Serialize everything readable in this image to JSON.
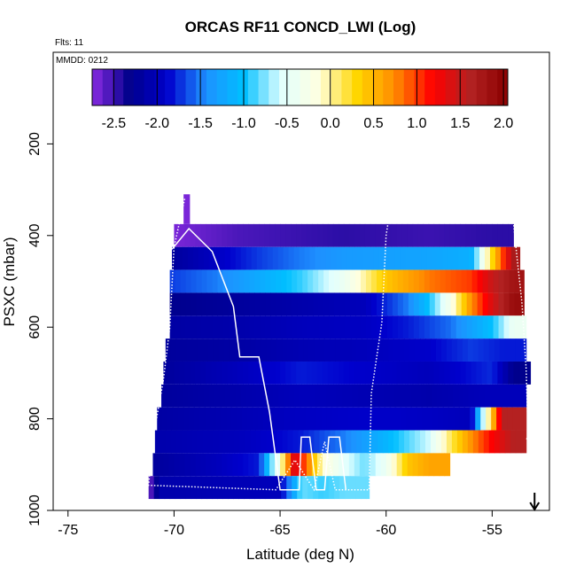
{
  "chart_data": {
    "type": "heatmap",
    "title": "ORCAS RF11 CONCD_LWI (Log)",
    "flights_note": "Flts: 11",
    "date_note": "MMDD: 0212",
    "xlabel": "Latitude (deg N)",
    "ylabel": "PSXC (mbar)",
    "xlim": [
      -75.7,
      -52.3
    ],
    "ylim": [
      1000,
      0
    ],
    "x_ticks": [
      -75,
      -70,
      -65,
      -60,
      -55
    ],
    "x_tick_labels": [
      "-75",
      "-70",
      "-65",
      "-60",
      "-55"
    ],
    "y_ticks": [
      200,
      400,
      600,
      800,
      1000
    ],
    "y_tick_labels": [
      "200",
      "400",
      "600",
      "800",
      "1000"
    ],
    "colorbar": {
      "range": [
        -2.75,
        2.05
      ],
      "ticks": [
        -2.5,
        -2.0,
        -1.5,
        -1.0,
        -0.5,
        0.0,
        0.5,
        1.0,
        1.5,
        2.0
      ],
      "tick_labels": [
        "-2.5",
        "-2.0",
        "-1.5",
        "-1.0",
        "-0.5",
        "0.0",
        "0.5",
        "1.0",
        "1.5",
        "2.0"
      ],
      "colors": [
        "#8a2be2",
        "#00008b",
        "#0000cd",
        "#1e90ff",
        "#00bfff",
        "#e0ffff",
        "#ffffe0",
        "#ffd700",
        "#ff8c00",
        "#ff0000",
        "#b22222",
        "#8b0000"
      ]
    },
    "pressure_bins": [
      {
        "p": 400,
        "lat_min": -70,
        "lat_max": -54,
        "segments": [
          [
            -70,
            -2.7
          ],
          [
            -67,
            -2.55
          ],
          [
            -62,
            -2.45
          ],
          [
            -58,
            -2.5
          ],
          [
            -55,
            -2.45
          ]
        ]
      },
      {
        "p": 450,
        "lat_min": -70.1,
        "lat_max": -53.7,
        "segments": [
          [
            -70.1,
            -2.2
          ],
          [
            -68,
            -1.95
          ],
          [
            -66,
            -1.7
          ],
          [
            -64,
            -1.5
          ],
          [
            -62,
            -1.35
          ],
          [
            -60,
            -1.3
          ],
          [
            -58,
            -1.25
          ],
          [
            -56,
            -1.15
          ],
          [
            -54,
            1.7
          ]
        ]
      },
      {
        "p": 500,
        "lat_min": -70.2,
        "lat_max": -53.5,
        "segments": [
          [
            -70.2,
            -1.7
          ],
          [
            -68,
            -1.5
          ],
          [
            -66,
            -1.2
          ],
          [
            -64,
            -0.9
          ],
          [
            -62,
            -0.4
          ],
          [
            -60,
            0.4
          ],
          [
            -58,
            0.8
          ],
          [
            -56,
            1.0
          ],
          [
            -55,
            1.5
          ],
          [
            -54,
            1.8
          ]
        ]
      },
      {
        "p": 550,
        "lat_min": -70.2,
        "lat_max": -53.5,
        "segments": [
          [
            -70.2,
            -2.3
          ],
          [
            -67,
            -2.2
          ],
          [
            -64,
            -2.1
          ],
          [
            -61,
            -2.0
          ],
          [
            -59,
            -1.5
          ],
          [
            -58,
            -1.0
          ],
          [
            -57,
            -0.3
          ],
          [
            -56,
            0.7
          ],
          [
            -55,
            1.4
          ],
          [
            -54,
            1.9
          ]
        ]
      },
      {
        "p": 600,
        "lat_min": -70.2,
        "lat_max": -53.4,
        "segments": [
          [
            -70.2,
            -2.15
          ],
          [
            -67,
            -2.1
          ],
          [
            -64,
            -2.0
          ],
          [
            -61,
            -1.95
          ],
          [
            -59,
            -1.8
          ],
          [
            -57,
            -1.55
          ],
          [
            -55,
            -1.0
          ],
          [
            -54,
            -0.4
          ]
        ]
      },
      {
        "p": 650,
        "lat_min": -70.4,
        "lat_max": -53.4,
        "segments": [
          [
            -70.4,
            -2.2
          ],
          [
            -67,
            -2.15
          ],
          [
            -64,
            -2.05
          ],
          [
            -61,
            -2.0
          ],
          [
            -58,
            -1.9
          ],
          [
            -56,
            -1.7
          ],
          [
            -54.5,
            -1.8
          ]
        ]
      },
      {
        "p": 700,
        "lat_min": -70.5,
        "lat_max": -53.2,
        "segments": [
          [
            -70.5,
            -2.2
          ],
          [
            -67,
            -2.0
          ],
          [
            -64,
            -1.8
          ],
          [
            -61,
            -1.9
          ],
          [
            -58,
            -2.0
          ],
          [
            -55,
            -1.75
          ],
          [
            -54,
            -2.3
          ]
        ]
      },
      {
        "p": 750,
        "lat_min": -70.6,
        "lat_max": -53.4,
        "segments": [
          [
            -70.6,
            -2.2
          ],
          [
            -67,
            -2.1
          ],
          [
            -64,
            -2.0
          ],
          [
            -61,
            -2.05
          ],
          [
            -58,
            -2.1
          ],
          [
            -55,
            -2.0
          ]
        ]
      },
      {
        "p": 800,
        "lat_min": -70.8,
        "lat_max": -53.4,
        "segments": [
          [
            -70.8,
            -2.15
          ],
          [
            -67,
            -2.05
          ],
          [
            -64,
            -1.95
          ],
          [
            -61,
            -1.9
          ],
          [
            -58,
            -1.95
          ],
          [
            -56,
            -2.0
          ],
          [
            -54.5,
            1.6
          ]
        ]
      },
      {
        "p": 850,
        "lat_min": -70.9,
        "lat_max": -53.4,
        "segments": [
          [
            -70.9,
            -2.1
          ],
          [
            -67,
            -2.0
          ],
          [
            -64,
            -1.8
          ],
          [
            -62,
            -1.5
          ],
          [
            -60,
            -1.1
          ],
          [
            -58,
            -0.6
          ],
          [
            -57,
            0.1
          ],
          [
            -56,
            0.7
          ],
          [
            -55,
            1.2
          ],
          [
            -54,
            1.6
          ]
        ]
      },
      {
        "p": 900,
        "lat_min": -71.0,
        "lat_max": -57.0,
        "segments": [
          [
            -71.0,
            -2.2
          ],
          [
            -68,
            -2.0
          ],
          [
            -66,
            -1.8
          ],
          [
            -65.5,
            -0.9
          ],
          [
            -65,
            -0.3
          ],
          [
            -64.7,
            0.6
          ],
          [
            -64.3,
            1.5
          ],
          [
            -63.7,
            0.8
          ],
          [
            -63,
            -0.1
          ],
          [
            -62,
            -0.5
          ],
          [
            -61,
            -0.8
          ],
          [
            -60,
            -0.4
          ],
          [
            -59,
            0.4
          ],
          [
            -58,
            0.6
          ]
        ]
      },
      {
        "p": 950,
        "lat_min": -71.2,
        "lat_max": -60.8,
        "segments": [
          [
            -71.2,
            -2.7
          ],
          [
            -70.7,
            -2.1
          ],
          [
            -68,
            -2.05
          ],
          [
            -65,
            -2.0
          ],
          [
            -64,
            -0.8
          ],
          [
            -63,
            -0.9
          ],
          [
            -62,
            -0.8
          ]
        ]
      }
    ],
    "flight_tracks": [
      {
        "style": "solid",
        "points": [
          [
            -70.1,
            430
          ],
          [
            -69.3,
            385
          ],
          [
            -68.2,
            435
          ],
          [
            -67.2,
            555
          ],
          [
            -66.9,
            665
          ],
          [
            -66.0,
            665
          ],
          [
            -65.5,
            785
          ],
          [
            -65.0,
            955
          ],
          [
            -64.1,
            955
          ],
          [
            -64.0,
            840
          ],
          [
            -63.6,
            840
          ],
          [
            -63.3,
            955
          ],
          [
            -62.9,
            955
          ],
          [
            -62.7,
            840
          ],
          [
            -62.2,
            840
          ],
          [
            -61.9,
            955
          ]
        ]
      },
      {
        "style": "dotted",
        "points": [
          [
            -69.5,
            320
          ],
          [
            -70.0,
            425
          ],
          [
            -70.2,
            600
          ],
          [
            -70.5,
            715
          ],
          [
            -71.0,
            845
          ],
          [
            -71.2,
            945
          ],
          [
            -65.2,
            955
          ],
          [
            -64.3,
            890
          ],
          [
            -63.4,
            955
          ],
          [
            -62.9,
            850
          ],
          [
            -62.4,
            955
          ],
          [
            -60.8,
            955
          ],
          [
            -60.7,
            745
          ],
          [
            -60.2,
            590
          ],
          [
            -60.0,
            400
          ],
          [
            -59.9,
            370
          ],
          [
            -54.0,
            370
          ],
          [
            -53.8,
            460
          ],
          [
            -53.6,
            545
          ],
          [
            -53.4,
            690
          ],
          [
            -53.3,
            840
          ],
          [
            -53.4,
            845
          ]
        ]
      }
    ],
    "arrow_marker_lat": -53.0
  }
}
